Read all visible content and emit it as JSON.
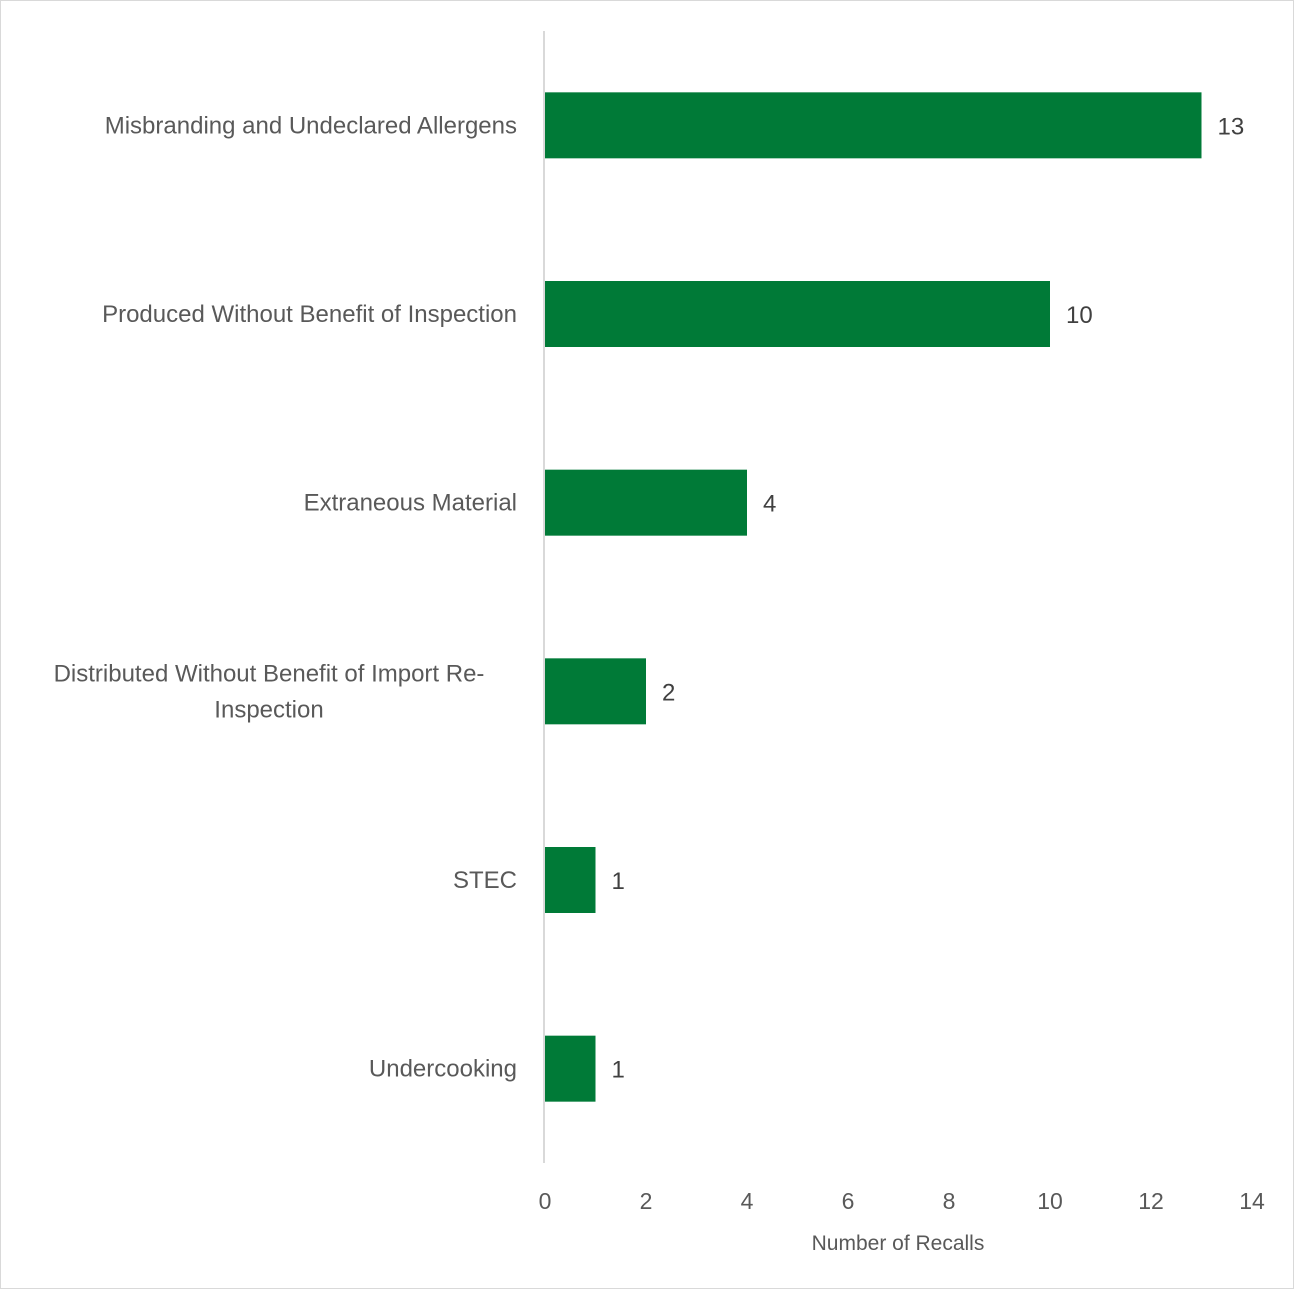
{
  "chart_data": {
    "type": "bar",
    "orientation": "horizontal",
    "title": "",
    "xlabel": "Number of Recalls",
    "ylabel": "",
    "categories": [
      "Misbranding and Undeclared Allergens",
      "Produced Without Benefit of Inspection",
      "Extraneous Material",
      "Distributed Without Benefit of Import Re-Inspection",
      "STEC",
      "Undercooking"
    ],
    "category_lines": [
      [
        "Misbranding and Undeclared Allergens"
      ],
      [
        "Produced Without Benefit of Inspection"
      ],
      [
        "Extraneous Material"
      ],
      [
        "Distributed Without Benefit of Import Re-",
        "Inspection"
      ],
      [
        "STEC"
      ],
      [
        "Undercooking"
      ]
    ],
    "values": [
      13,
      10,
      4,
      2,
      1,
      1
    ],
    "xlim": [
      0,
      14
    ],
    "xticks": [
      0,
      2,
      4,
      6,
      8,
      10,
      12,
      14
    ],
    "grid": false,
    "legend": "none",
    "data_labels": true,
    "bar_color": "#007A37"
  }
}
